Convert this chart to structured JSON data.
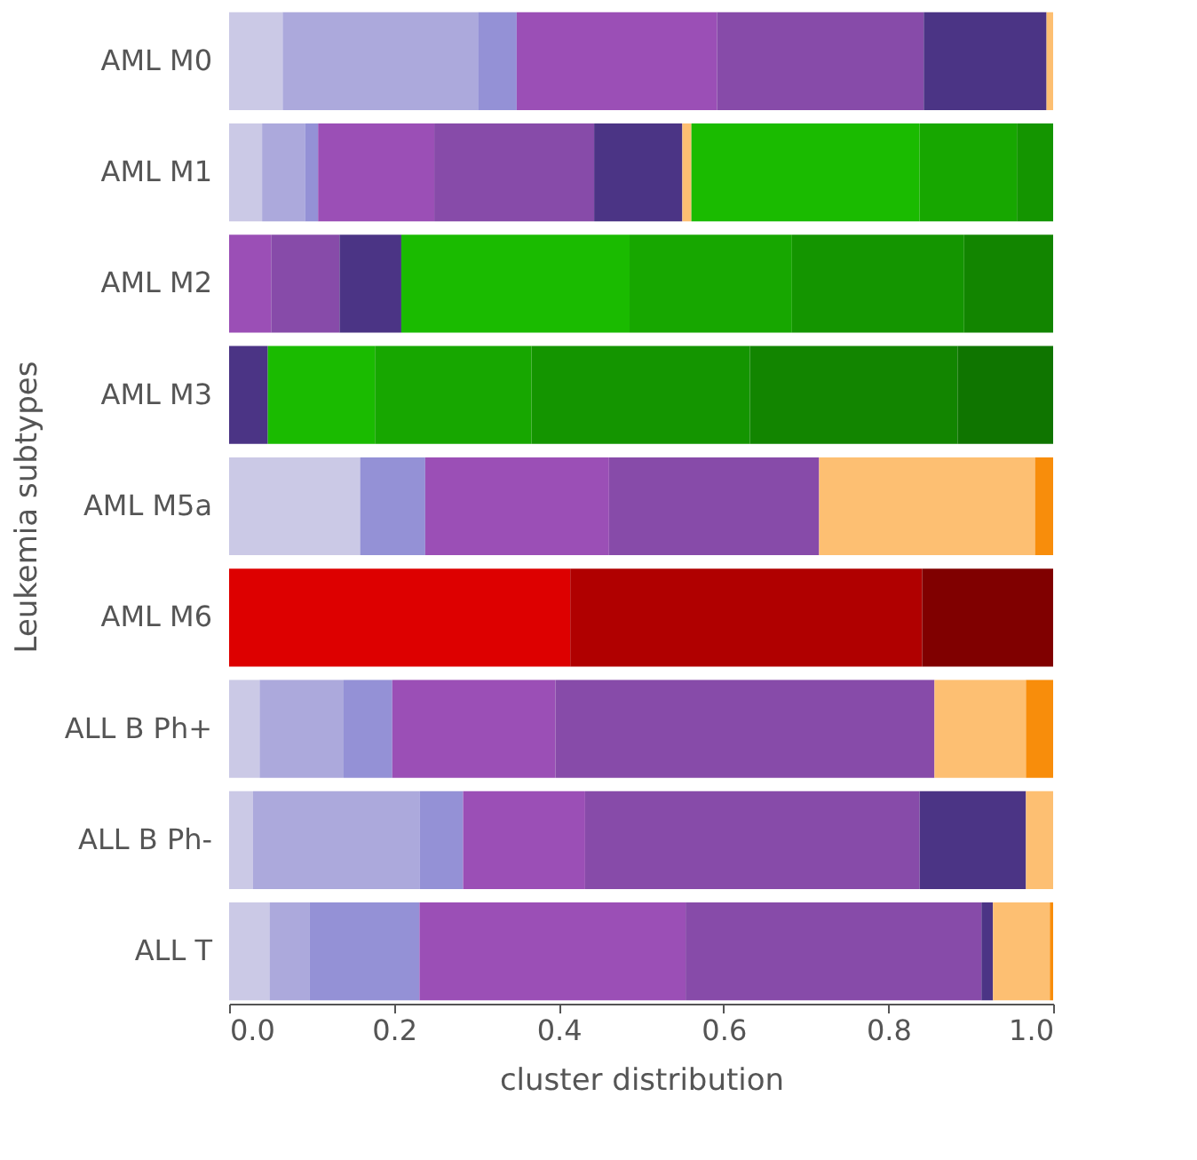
{
  "chart_data": {
    "type": "bar",
    "orientation": "horizontal",
    "stacked": true,
    "legend": false,
    "grid": false,
    "ylabel": "Leukemia subtypes",
    "xlabel": "cluster distribution",
    "categories": [
      "AML M0",
      "AML M1",
      "AML M2",
      "AML M3",
      "AML M5a",
      "AML M6",
      "ALL B Ph+",
      "ALL B Ph-",
      "ALL T"
    ],
    "xlim": [
      0,
      1
    ],
    "xticks": [
      {
        "value": 0,
        "label": "0.0"
      },
      {
        "value": 0.2,
        "label": "0.2"
      },
      {
        "value": 0.4,
        "label": "0.4"
      },
      {
        "value": 0.6,
        "label": "0.6"
      },
      {
        "value": 0.8,
        "label": "0.8"
      },
      {
        "value": 1,
        "label": "1.0"
      }
    ],
    "series": [
      {
        "color": "#cbc9e6",
        "values": [
          0.065,
          0.04,
          null,
          null,
          0.159,
          null,
          0.037,
          0.029,
          0.049
        ]
      },
      {
        "color": "#aca9dc",
        "values": [
          0.237,
          0.052,
          null,
          null,
          null,
          null,
          0.102,
          0.202,
          0.049
        ]
      },
      {
        "color": "#9491d6",
        "values": [
          0.047,
          0.016,
          null,
          null,
          0.079,
          null,
          0.059,
          0.053,
          0.133
        ]
      },
      {
        "color": "#9b4fb6",
        "values": [
          0.243,
          0.141,
          0.051,
          null,
          0.223,
          null,
          0.198,
          0.148,
          0.323
        ]
      },
      {
        "color": "#874ba9",
        "values": [
          0.251,
          0.194,
          0.083,
          null,
          0.255,
          null,
          0.46,
          0.406,
          0.359
        ]
      },
      {
        "color": "#4b3485",
        "values": [
          0.149,
          0.107,
          0.075,
          0.047,
          null,
          null,
          null,
          0.129,
          0.014
        ]
      },
      {
        "color": "#fdbf72",
        "values": [
          0.008,
          0.011,
          null,
          null,
          0.262,
          null,
          0.111,
          0.033,
          0.069
        ]
      },
      {
        "color": "#f88d0b",
        "values": [
          null,
          null,
          null,
          null,
          0.022,
          null,
          0.033,
          null,
          0.004
        ]
      },
      {
        "color": "#1abb00",
        "values": [
          null,
          0.277,
          0.277,
          0.13,
          null,
          null,
          null,
          null,
          null
        ]
      },
      {
        "color": "#17a700",
        "values": [
          null,
          0.118,
          0.197,
          0.19,
          null,
          null,
          null,
          null,
          null
        ]
      },
      {
        "color": "#149500",
        "values": [
          null,
          0.044,
          0.209,
          0.265,
          null,
          null,
          null,
          null,
          null
        ]
      },
      {
        "color": "#128500",
        "values": [
          null,
          null,
          0.108,
          0.252,
          null,
          null,
          null,
          null,
          null
        ]
      },
      {
        "color": "#0f7500",
        "values": [
          null,
          null,
          null,
          0.116,
          null,
          null,
          null,
          null,
          null
        ]
      },
      {
        "color": "#dd0000",
        "values": [
          null,
          null,
          null,
          null,
          null,
          0.414,
          null,
          null,
          null
        ]
      },
      {
        "color": "#b00000",
        "values": [
          null,
          null,
          null,
          null,
          null,
          0.427,
          null,
          null,
          null
        ]
      },
      {
        "color": "#800000",
        "values": [
          null,
          null,
          null,
          null,
          null,
          0.159,
          null,
          null,
          null
        ]
      }
    ]
  }
}
